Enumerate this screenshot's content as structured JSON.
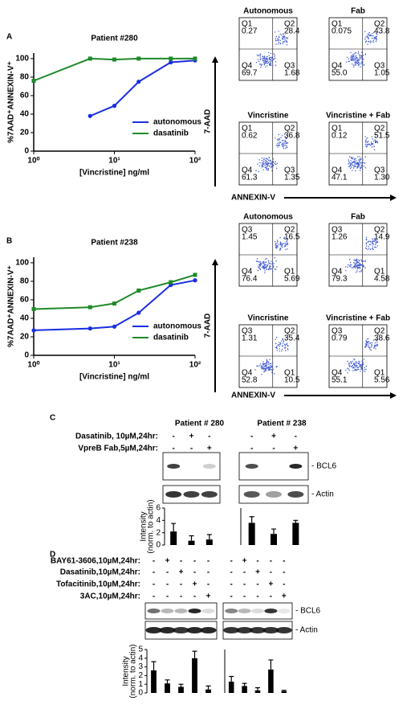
{
  "panel_labels": [
    "A",
    "B",
    "C",
    "D"
  ],
  "chart_data": [
    {
      "type": "line",
      "title": "Patient #280",
      "x_label": "[Vincristine] ng/ml",
      "y_label": "%7AAD⁺ANNEXIN-V⁺",
      "log_x": true,
      "xlim": [
        1,
        100
      ],
      "xticks": [
        {
          "value": 1,
          "label": "10⁰"
        },
        {
          "value": 10,
          "label": "10¹"
        },
        {
          "value": 100,
          "label": "10²"
        }
      ],
      "ylim": [
        0,
        106
      ],
      "yticks": [
        0,
        20,
        40,
        60,
        80,
        100
      ],
      "legend": "lower right",
      "series": [
        {
          "name": "autonomous",
          "color": "#1a2ee0",
          "x": [
            5,
            10,
            20,
            50,
            100
          ],
          "values": [
            38,
            49,
            75,
            96,
            98
          ]
        },
        {
          "name": "dasatinib",
          "color": "#1f8a2a",
          "x": [
            1,
            5,
            10,
            20,
            50,
            100
          ],
          "values": [
            76,
            100,
            99,
            100,
            100,
            100
          ]
        }
      ]
    },
    {
      "type": "line",
      "title": "Patient #238",
      "x_label": "[Vincristine] ng/ml",
      "y_label": "%7AAD⁺ANNEXIN-V⁺",
      "log_x": true,
      "xlim": [
        1,
        100
      ],
      "xticks": [
        {
          "value": 1,
          "label": "10⁰"
        },
        {
          "value": 10,
          "label": "10¹"
        },
        {
          "value": 100,
          "label": "10²"
        }
      ],
      "ylim": [
        0,
        106
      ],
      "yticks": [
        0,
        20,
        40,
        60,
        80,
        100
      ],
      "legend": "lower right",
      "series": [
        {
          "name": "autonomous",
          "color": "#1a2ee0",
          "x": [
            1,
            5,
            10,
            20,
            50,
            100
          ],
          "values": [
            27,
            29,
            31,
            46,
            76,
            81
          ]
        },
        {
          "name": "dasatinib",
          "color": "#1f8a2a",
          "x": [
            1,
            5,
            10,
            20,
            50,
            100
          ],
          "values": [
            50,
            52,
            56,
            70,
            79,
            87
          ]
        }
      ]
    },
    {
      "type": "bar",
      "color": "#000000",
      "ylim": [
        0,
        6
      ],
      "yticks": [
        0,
        2,
        4,
        6
      ],
      "values": [
        2.2,
        0.7,
        0.9
      ],
      "errors": [
        1.3,
        0.8,
        0.8
      ]
    },
    {
      "type": "bar",
      "color": "#000000",
      "ylim": [
        0,
        6
      ],
      "values": [
        3.6,
        1.8,
        3.6
      ],
      "errors": [
        1.0,
        0.8,
        0.4
      ]
    },
    {
      "type": "bar",
      "color": "#000000",
      "ylim": [
        0,
        5
      ],
      "yticks": [
        0,
        1,
        2,
        3,
        4,
        5
      ],
      "values": [
        2.6,
        1.1,
        0.7,
        4.0,
        0.4
      ],
      "errors": [
        1.0,
        0.4,
        0.3,
        0.8,
        0.4
      ]
    },
    {
      "type": "bar",
      "color": "#000000",
      "ylim": [
        0,
        5
      ],
      "values": [
        1.3,
        0.8,
        0.3,
        2.7,
        0.2
      ],
      "errors": [
        0.6,
        0.3,
        0.3,
        1.1,
        0.1
      ]
    }
  ],
  "flow": [
    {
      "y_label": "7-AAD",
      "x_label": "ANNEXIN-V",
      "plots": [
        {
          "title": "Autonomous",
          "quadrants": [
            [
              "Q1",
              "0.27"
            ],
            [
              "Q2",
              "28.4"
            ],
            [
              "Q4",
              "69.7"
            ],
            [
              "Q3",
              "1.68"
            ]
          ]
        },
        {
          "title": "Fab",
          "quadrants": [
            [
              "Q1",
              "0.075"
            ],
            [
              "Q2",
              "43.8"
            ],
            [
              "Q4",
              "55.0"
            ],
            [
              "Q3",
              "1.05"
            ]
          ]
        },
        {
          "title": "Vincristine",
          "quadrants": [
            [
              "Q1",
              "0.62"
            ],
            [
              "Q2",
              "36.8"
            ],
            [
              "Q4",
              "61.3"
            ],
            [
              "Q3",
              "1.35"
            ]
          ]
        },
        {
          "title": "Vincristine + Fab",
          "quadrants": [
            [
              "Q1",
              "0.12"
            ],
            [
              "Q2",
              "51.5"
            ],
            [
              "Q4",
              "47.1"
            ],
            [
              "Q3",
              "1.30"
            ]
          ]
        }
      ]
    },
    {
      "y_label": "7-AAD",
      "x_label": "ANNEXIN-V",
      "plots": [
        {
          "title": "Autonomous",
          "quadrants": [
            [
              "Q3",
              "1.45"
            ],
            [
              "Q2",
              "16.5"
            ],
            [
              "Q4",
              "76.4"
            ],
            [
              "Q1",
              "5.69"
            ]
          ]
        },
        {
          "title": "Fab",
          "quadrants": [
            [
              "Q3",
              "1.26"
            ],
            [
              "Q2",
              "14.9"
            ],
            [
              "Q4",
              "79.3"
            ],
            [
              "Q1",
              "4.58"
            ]
          ]
        },
        {
          "title": "Vincristine",
          "quadrants": [
            [
              "Q3",
              "1.31"
            ],
            [
              "Q2",
              "35.4"
            ],
            [
              "Q4",
              "52.8"
            ],
            [
              "Q1",
              "10.5"
            ]
          ]
        },
        {
          "title": "Vincristine + Fab",
          "quadrants": [
            [
              "Q3",
              "0.79"
            ],
            [
              "Q2",
              "38.6"
            ],
            [
              "Q4",
              "55.1"
            ],
            [
              "Q1",
              "5.56"
            ]
          ]
        }
      ]
    }
  ],
  "blots": [
    {
      "patients": [
        "Patient # 280",
        "Patient # 238"
      ],
      "treatments": [
        {
          "label": "Dasatinib, 10µM,24hr:",
          "signs": [
            "-",
            "+",
            "-"
          ]
        },
        {
          "label": "VpreB Fab,5µM,24hr:",
          "signs": [
            "-",
            "-",
            "+"
          ]
        }
      ],
      "bands": [
        "- BCL6",
        "- Actin"
      ],
      "y_label": [
        "Intensity",
        "(norm. to actin)"
      ]
    },
    {
      "treatments": [
        {
          "label": "BAY61-3606,10µM,24hr:",
          "signs": [
            "-",
            "+",
            "-",
            "-",
            "-"
          ]
        },
        {
          "label": "Dasatinib,10µM,24hr:",
          "signs": [
            "-",
            "-",
            "+",
            "-",
            "-"
          ]
        },
        {
          "label": "Tofacitinib,10µM,24hr:",
          "signs": [
            "-",
            "-",
            "-",
            "+",
            "-"
          ]
        },
        {
          "label": "3AC,10µM,24hr:",
          "signs": [
            "-",
            "-",
            "-",
            "-",
            "+"
          ]
        }
      ],
      "bands": [
        "- BCL6",
        "- Actin"
      ],
      "y_label": [
        "Intensity",
        "(norm. to actin)"
      ]
    }
  ]
}
